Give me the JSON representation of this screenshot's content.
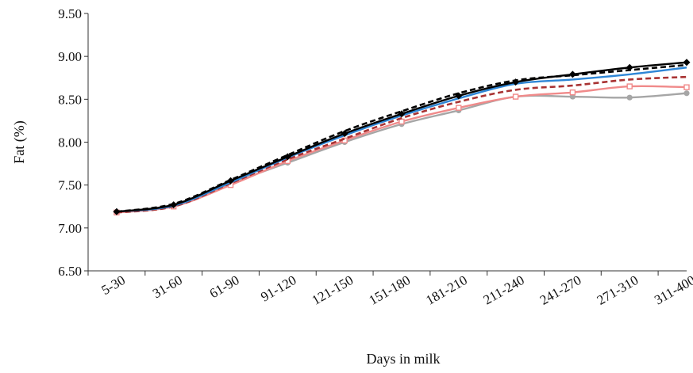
{
  "chart_data": {
    "type": "line",
    "title": "",
    "xlabel": "Days in milk",
    "ylabel": "Fat (%)",
    "ylim": [
      6.5,
      9.5
    ],
    "yticks": [
      "6.50",
      "7.00",
      "7.50",
      "8.00",
      "8.50",
      "9.00",
      "9.50"
    ],
    "categories": [
      "5-30",
      "31-60",
      "61-90",
      "91-120",
      "121-150",
      "151-180",
      "181-210",
      "211-240",
      "241-270",
      "271-310",
      "311-400"
    ],
    "grid": false,
    "legend": "none",
    "series": [
      {
        "values": [
          7.19,
          7.27,
          7.55,
          7.83,
          8.1,
          8.33,
          8.54,
          8.7,
          8.79,
          8.87,
          8.93
        ],
        "color": "#000000",
        "style": "solid",
        "marker": "diamond"
      },
      {
        "values": [
          7.19,
          7.28,
          7.56,
          7.85,
          8.13,
          8.36,
          8.57,
          8.72,
          8.78,
          8.84,
          8.9
        ],
        "color": "#000000",
        "style": "dashed",
        "marker": "none"
      },
      {
        "values": [
          7.19,
          7.26,
          7.53,
          7.82,
          8.08,
          8.31,
          8.51,
          8.68,
          8.73,
          8.79,
          8.87
        ],
        "color": "#2e86d6",
        "style": "solid",
        "marker": "none"
      },
      {
        "values": [
          7.18,
          7.25,
          7.52,
          7.8,
          8.04,
          8.28,
          8.47,
          8.61,
          8.66,
          8.73,
          8.76
        ],
        "color": "#a83232",
        "style": "dashed",
        "marker": "none"
      },
      {
        "values": [
          7.18,
          7.25,
          7.5,
          7.78,
          8.02,
          8.24,
          8.4,
          8.53,
          8.58,
          8.65,
          8.64
        ],
        "color": "#f08a8a",
        "style": "solid",
        "marker": "square"
      },
      {
        "values": [
          7.18,
          7.26,
          7.52,
          7.76,
          8.0,
          8.21,
          8.37,
          8.53,
          8.53,
          8.52,
          8.57
        ],
        "color": "#a6a6a6",
        "style": "solid",
        "marker": "circle"
      }
    ]
  }
}
